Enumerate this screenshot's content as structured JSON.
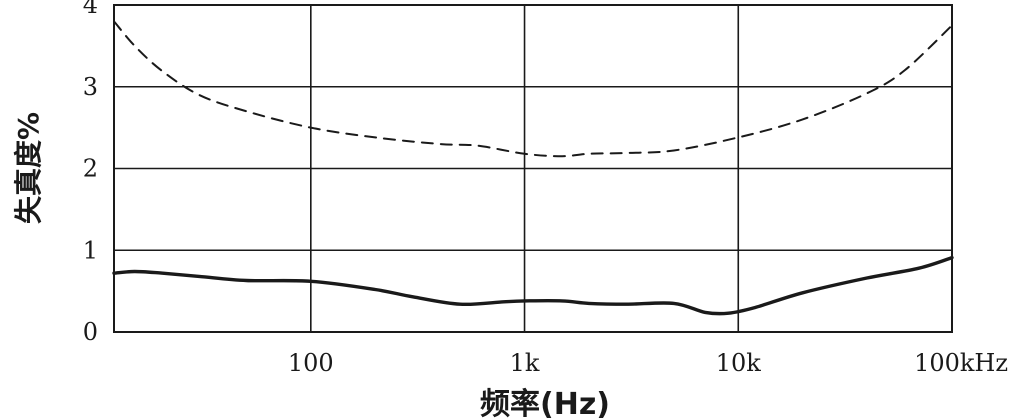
{
  "chart_data": {
    "type": "line",
    "x_scale": "log",
    "xlim": [
      12,
      100000
    ],
    "ylim": [
      0,
      4
    ],
    "grid": true,
    "xlabel": "频率(Hz)",
    "ylabel": "失真度%",
    "x_ticks": [
      {
        "value": 100,
        "label": "100"
      },
      {
        "value": 1000,
        "label": "1k"
      },
      {
        "value": 10000,
        "label": "10k"
      },
      {
        "value": 100000,
        "label": "100kHz"
      }
    ],
    "y_ticks": [
      {
        "value": 0,
        "label": "0"
      },
      {
        "value": 1,
        "label": "1"
      },
      {
        "value": 2,
        "label": "2"
      },
      {
        "value": 3,
        "label": "3"
      },
      {
        "value": 4,
        "label": "4"
      }
    ],
    "series": [
      {
        "style": "dashed",
        "x": [
          12,
          15,
          20,
          30,
          50,
          100,
          200,
          400,
          600,
          1000,
          1500,
          2000,
          3000,
          5000,
          10000,
          20000,
          40000,
          60000,
          100000
        ],
        "y": [
          3.8,
          3.5,
          3.2,
          2.9,
          2.7,
          2.5,
          2.38,
          2.3,
          2.28,
          2.18,
          2.15,
          2.18,
          2.19,
          2.22,
          2.38,
          2.6,
          2.92,
          3.2,
          3.75
        ]
      },
      {
        "style": "solid",
        "x": [
          12,
          15,
          20,
          30,
          50,
          100,
          200,
          300,
          500,
          800,
          1000,
          1500,
          2000,
          3000,
          5000,
          7000,
          9000,
          12000,
          20000,
          40000,
          70000,
          100000
        ],
        "y": [
          0.72,
          0.74,
          0.72,
          0.68,
          0.63,
          0.62,
          0.52,
          0.43,
          0.34,
          0.37,
          0.38,
          0.38,
          0.35,
          0.34,
          0.35,
          0.24,
          0.23,
          0.3,
          0.48,
          0.66,
          0.78,
          0.91
        ]
      }
    ]
  }
}
